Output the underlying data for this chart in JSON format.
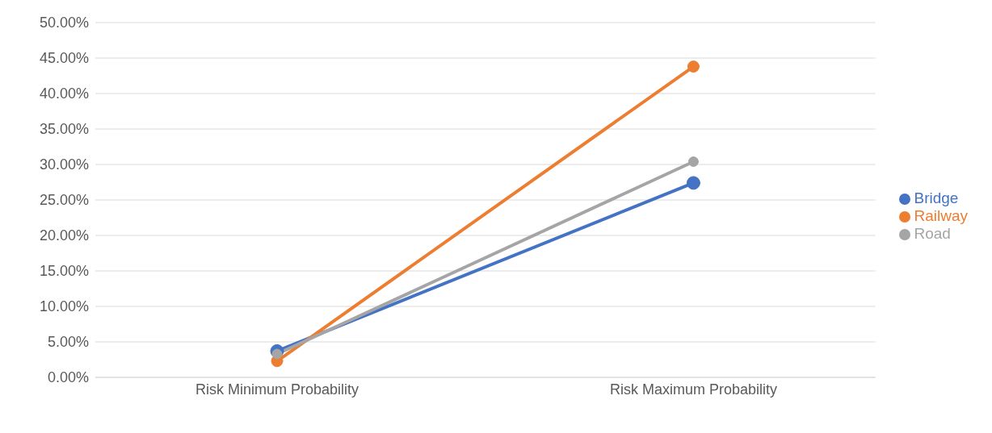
{
  "chart_data": {
    "type": "line",
    "categories": [
      "Risk Minimum Probability",
      "Risk Maximum Probability"
    ],
    "series": [
      {
        "name": "Bridge",
        "color": "#4472c4",
        "values": [
          3.7,
          27.4
        ]
      },
      {
        "name": "Railway",
        "color": "#ed7d31",
        "values": [
          2.3,
          43.8
        ]
      },
      {
        "name": "Road",
        "color": "#a5a5a5",
        "values": [
          3.3,
          30.4
        ]
      }
    ],
    "ylim": [
      0,
      50
    ],
    "yticks": [
      {
        "value": 0,
        "label": "0.00%"
      },
      {
        "value": 5,
        "label": "5.00%"
      },
      {
        "value": 10,
        "label": "10.00%"
      },
      {
        "value": 15,
        "label": "15.00%"
      },
      {
        "value": 20,
        "label": "20.00%"
      },
      {
        "value": 25,
        "label": "25.00%"
      },
      {
        "value": 30,
        "label": "30.00%"
      },
      {
        "value": 35,
        "label": "35.00%"
      },
      {
        "value": 40,
        "label": "40.00%"
      },
      {
        "value": 45,
        "label": "45.00%"
      },
      {
        "value": 50,
        "label": "50.00%"
      }
    ],
    "grid": "y",
    "legend": "right",
    "marker": "circle",
    "line_style": "solid"
  }
}
